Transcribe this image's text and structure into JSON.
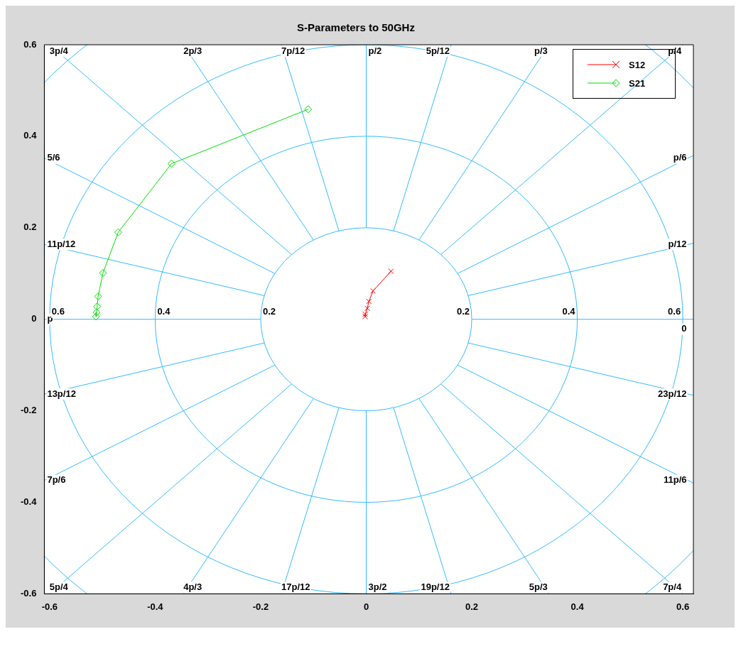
{
  "chart_data": {
    "type": "line",
    "title": "S-Parameters to 50GHz",
    "series": [
      {
        "name": "S12",
        "color": "#ff0000",
        "marker": "cross",
        "x": [
          0.047,
          0.013,
          0.005,
          0.002,
          -0.002,
          -0.002
        ],
        "values": [
          0.105,
          0.062,
          0.039,
          0.024,
          0.011,
          0.006
        ]
      },
      {
        "name": "S21",
        "color": "#00e000",
        "marker": "diamond",
        "x": [
          -0.11,
          -0.369,
          -0.47,
          -0.499,
          -0.508,
          -0.51,
          -0.511,
          -0.512
        ],
        "values": [
          0.459,
          0.34,
          0.19,
          0.101,
          0.05,
          0.028,
          0.015,
          0.006
        ]
      }
    ],
    "xlim": [
      -0.61,
      0.62
    ],
    "ylim": [
      -0.6,
      0.6
    ],
    "xticks": [
      -0.6,
      -0.4,
      -0.2,
      0,
      0.2,
      0.4,
      0.6
    ],
    "yticks": [
      -0.6,
      -0.4,
      -0.2,
      0,
      0.2,
      0.4,
      0.6
    ],
    "legend": "top right",
    "annotations": [
      "0",
      "p/12",
      "p/6",
      "p/4",
      "p/3",
      "5p/12",
      "p/2",
      "7p/12",
      "2p/3",
      "3p/4",
      "5/6",
      "11p/12",
      "p",
      "13p/12",
      "7p/6",
      "5p/4",
      "4p/3",
      "17p/12",
      "3p/2",
      "19p/12",
      "5p/3",
      "7p/4",
      "11p/6",
      "23p/12",
      "0.6",
      "0.4",
      "0.2",
      "0.2",
      "0.4",
      "0.6"
    ]
  }
}
